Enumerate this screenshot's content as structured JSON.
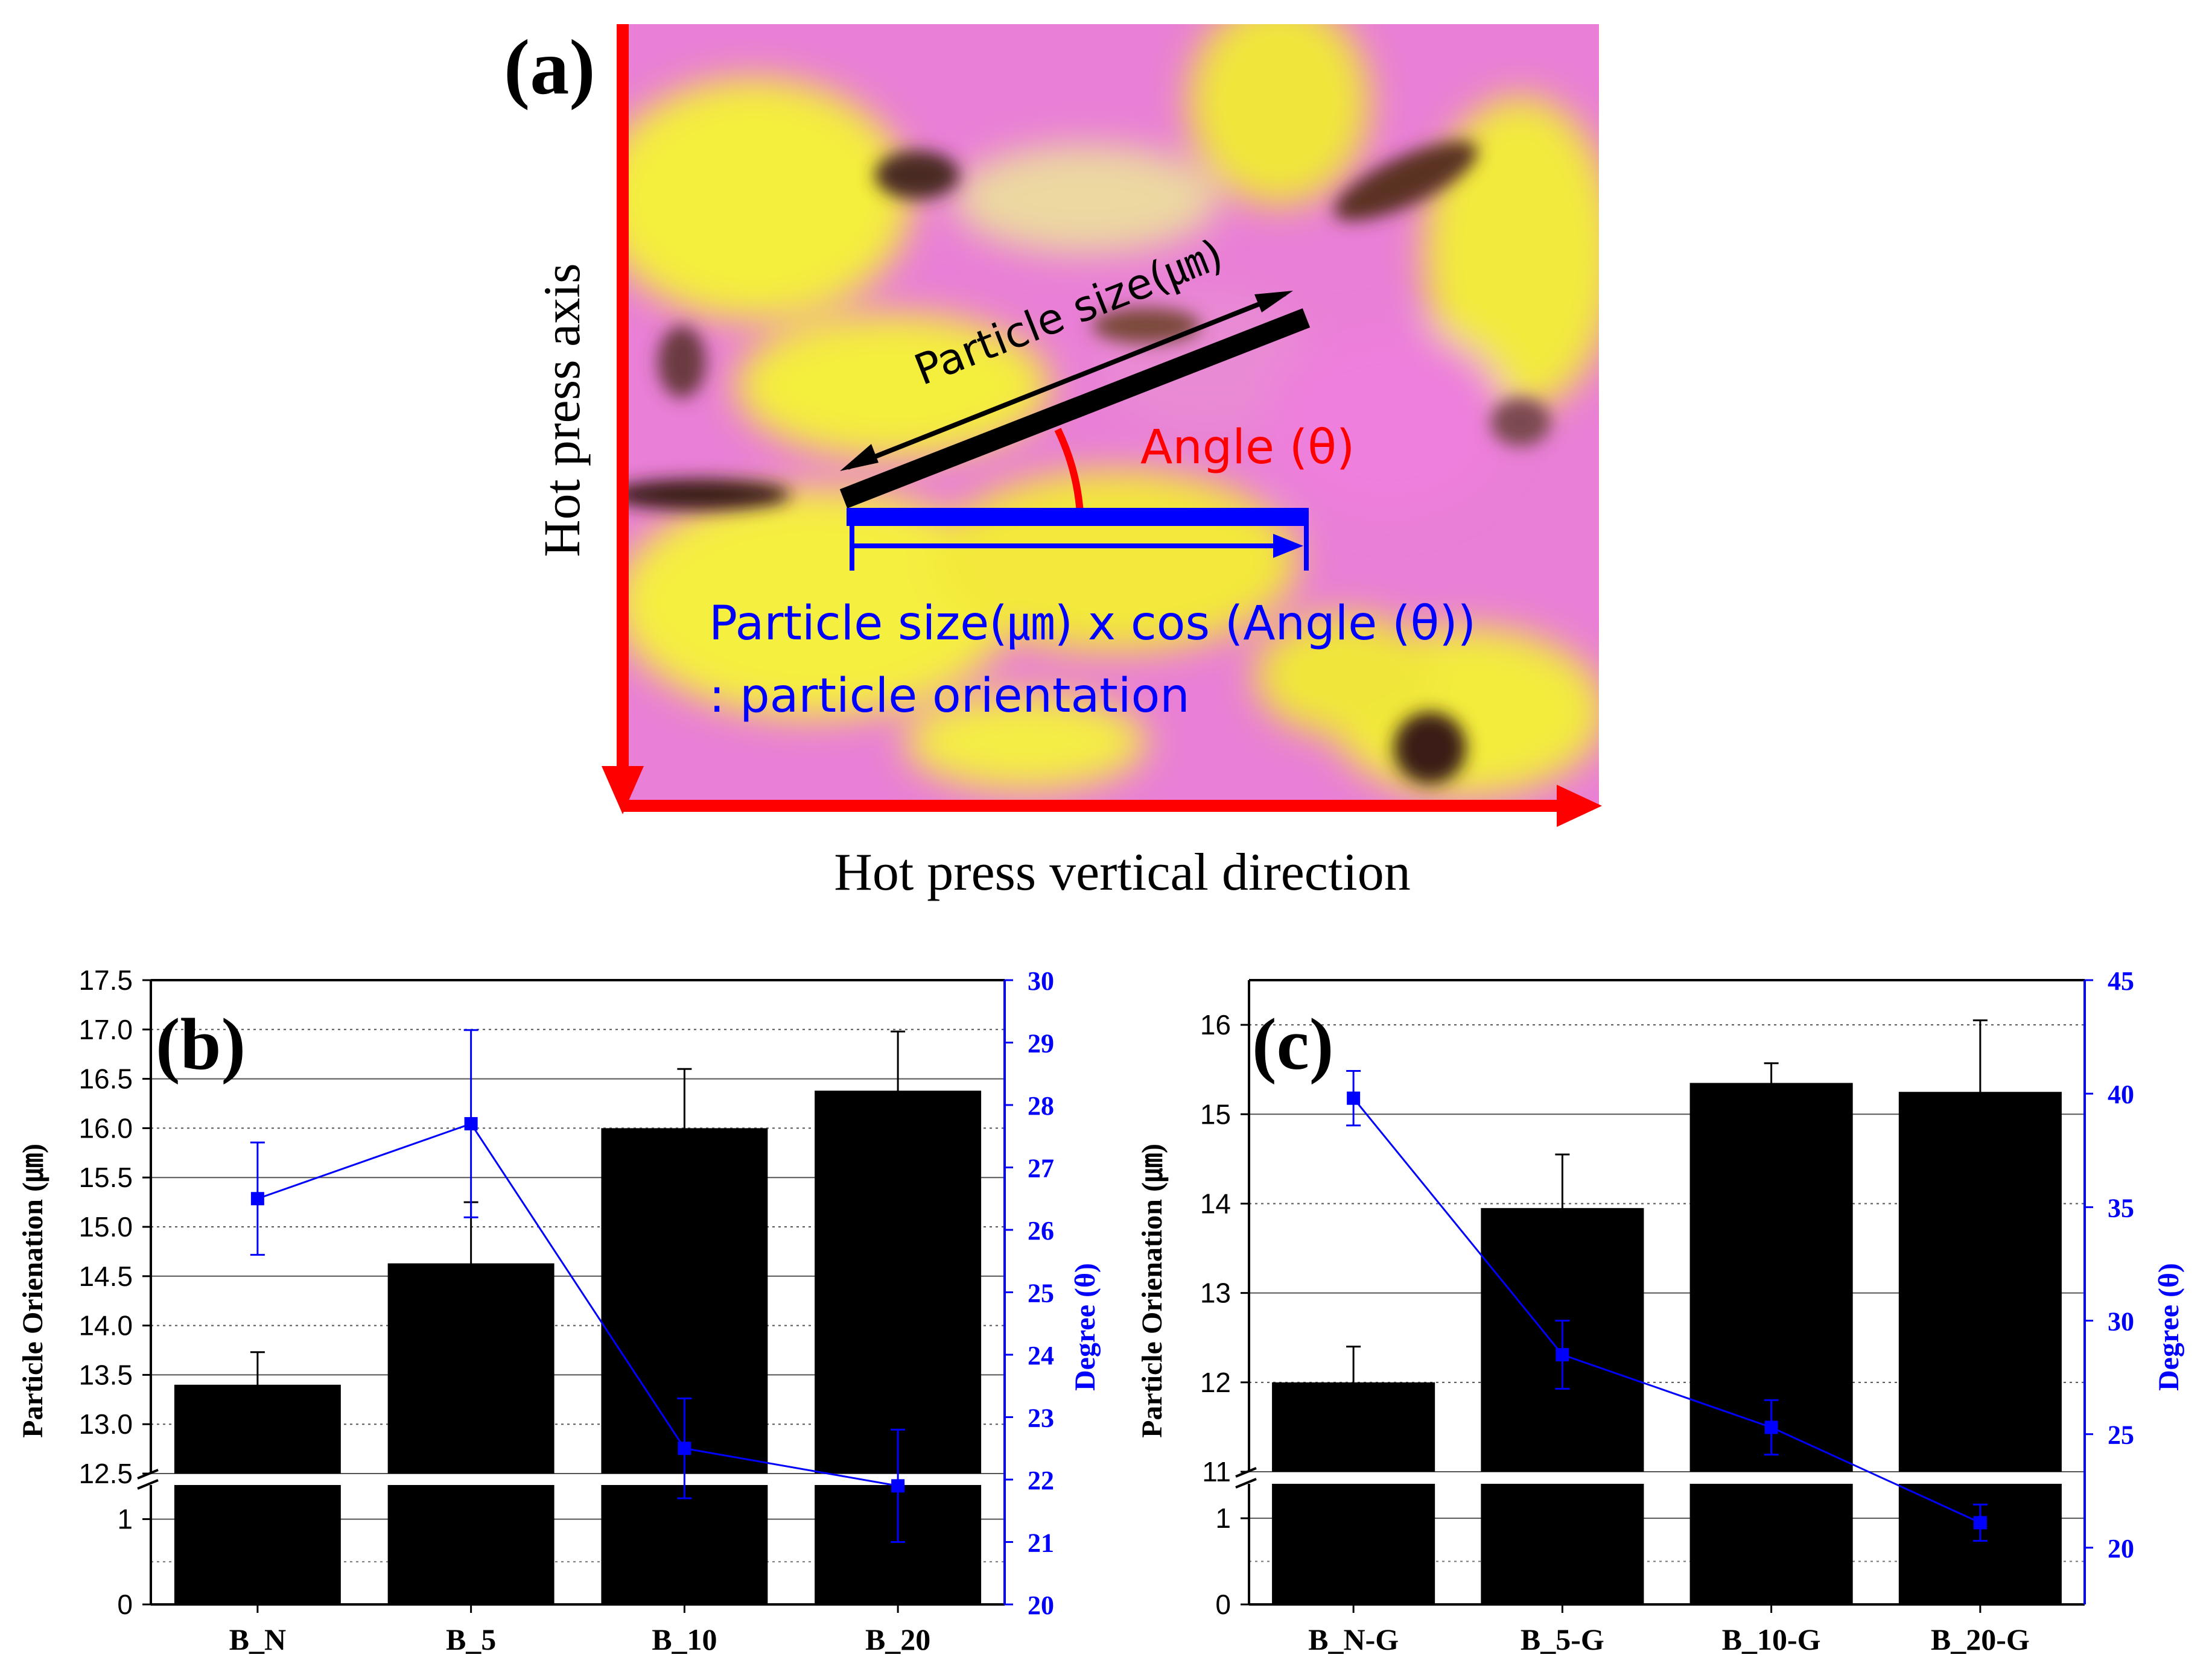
{
  "panel_a": {
    "label": "(a)",
    "y_axis_label": "Hot press axis",
    "x_axis_label": "Hot press vertical direction",
    "particle_label": "Particle size(㎛)",
    "angle_label": "Angle (θ)",
    "formula_line1": "Particle size(㎛) x cos (Angle (θ))",
    "formula_line2": ": particle orientation",
    "colors": {
      "arrow": "#ff0000",
      "blue": "#0000ff",
      "pink": "#e880d8",
      "yellow": "#f2ea3a",
      "dark": "#4a2a20"
    }
  },
  "chart_data": [
    {
      "panel": "(b)",
      "type": "bar",
      "categories": [
        "B_N",
        "B_5",
        "B_10",
        "B_20"
      ],
      "ylabel": "Particle Orienation (㎛)",
      "y2label": "Degree (θ)",
      "y_lower_ticks": [
        "0",
        "1"
      ],
      "y_upper_ticks": [
        "12.5",
        "13.0",
        "13.5",
        "14.0",
        "14.5",
        "15.0",
        "15.5",
        "16.0",
        "16.5",
        "17.0",
        "17.5"
      ],
      "y2_ticks": [
        "20",
        "21",
        "22",
        "23",
        "24",
        "25",
        "26",
        "27",
        "28",
        "29",
        "30"
      ],
      "lower_range": [
        0,
        1.4
      ],
      "upper_range": [
        12.5,
        17.5
      ],
      "y2_range": [
        20,
        30
      ],
      "series": [
        {
          "name": "Particle Orienation",
          "axis": "left",
          "color": "#000000",
          "values": [
            13.4,
            14.63,
            16.0,
            16.38
          ],
          "errors": [
            0.33,
            0.62,
            0.6,
            0.6
          ]
        },
        {
          "name": "Degree",
          "axis": "right",
          "color": "#0000ff",
          "values": [
            26.5,
            27.7,
            22.5,
            21.9
          ],
          "errors": [
            0.9,
            1.5,
            0.8,
            0.9
          ]
        }
      ]
    },
    {
      "panel": "(c)",
      "type": "bar",
      "categories": [
        "B_N-G",
        "B_5-G",
        "B_10-G",
        "B_20-G"
      ],
      "ylabel": "Particle Orienation (㎛)",
      "y2label": "Degree (θ)",
      "y_lower_ticks": [
        "0",
        "1"
      ],
      "y_upper_ticks": [
        "11",
        "12",
        "13",
        "14",
        "15",
        "16"
      ],
      "y2_ticks": [
        "20",
        "25",
        "30",
        "35",
        "40",
        "45"
      ],
      "lower_range": [
        0,
        1.4
      ],
      "upper_range": [
        11,
        16.5
      ],
      "y2_range": [
        17.5,
        45
      ],
      "series": [
        {
          "name": "Particle Orienation",
          "axis": "left",
          "color": "#000000",
          "values": [
            12.0,
            13.95,
            15.35,
            15.25
          ],
          "errors": [
            0.4,
            0.6,
            0.22,
            0.8
          ]
        },
        {
          "name": "Degree",
          "axis": "right",
          "color": "#0000ff",
          "values": [
            39.8,
            28.5,
            25.3,
            21.1
          ],
          "errors": [
            1.2,
            1.5,
            1.2,
            0.8
          ]
        }
      ]
    }
  ]
}
